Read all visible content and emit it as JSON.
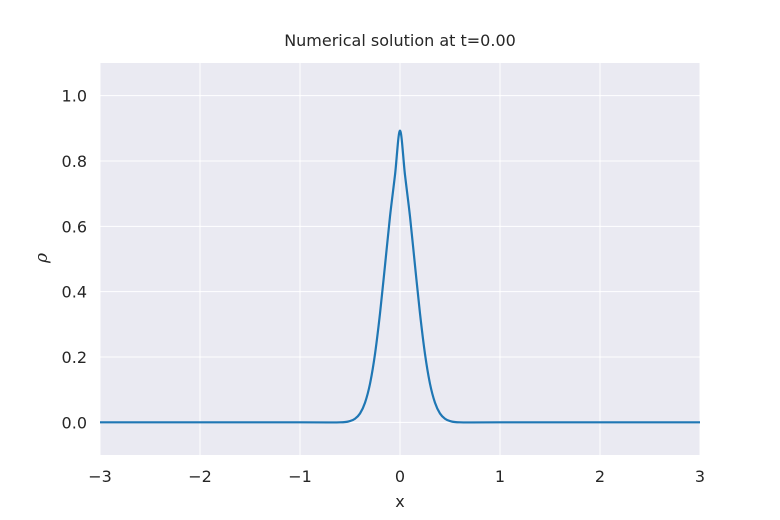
{
  "chart_data": {
    "type": "line",
    "title": "Numerical solution at t=0.00",
    "xlabel": "x",
    "ylabel": "ρ",
    "xlim": [
      -3,
      3
    ],
    "ylim": [
      -0.1,
      1.1
    ],
    "xticks": [
      -3,
      -2,
      -1,
      0,
      1,
      2,
      3
    ],
    "xtick_labels": [
      "−3",
      "−2",
      "−1",
      "0",
      "1",
      "2",
      "3"
    ],
    "yticks": [
      0.0,
      0.2,
      0.4,
      0.6,
      0.8,
      1.0
    ],
    "ytick_labels": [
      "0.0",
      "0.2",
      "0.4",
      "0.6",
      "0.8",
      "1.0"
    ],
    "grid": true,
    "colors": {
      "background": "#eaeaf2",
      "grid": "#ffffff",
      "line": "#1f77b4"
    },
    "series": [
      {
        "x": [
          -3.0,
          -1.0,
          -0.6,
          -0.5,
          -0.45,
          -0.4,
          -0.35,
          -0.3,
          -0.25,
          -0.2,
          -0.15,
          -0.1,
          -0.05,
          0.0,
          0.05,
          0.1,
          0.15,
          0.2,
          0.25,
          0.3,
          0.35,
          0.4,
          0.45,
          0.5,
          0.6,
          1.0,
          3.0
        ],
        "y": [
          0.0,
          0.0,
          0.0,
          0.004,
          0.011,
          0.027,
          0.06,
          0.118,
          0.209,
          0.333,
          0.48,
          0.63,
          0.757,
          0.893,
          0.757,
          0.63,
          0.48,
          0.333,
          0.209,
          0.118,
          0.06,
          0.027,
          0.011,
          0.004,
          0.0,
          0.0,
          0.0
        ]
      }
    ]
  }
}
